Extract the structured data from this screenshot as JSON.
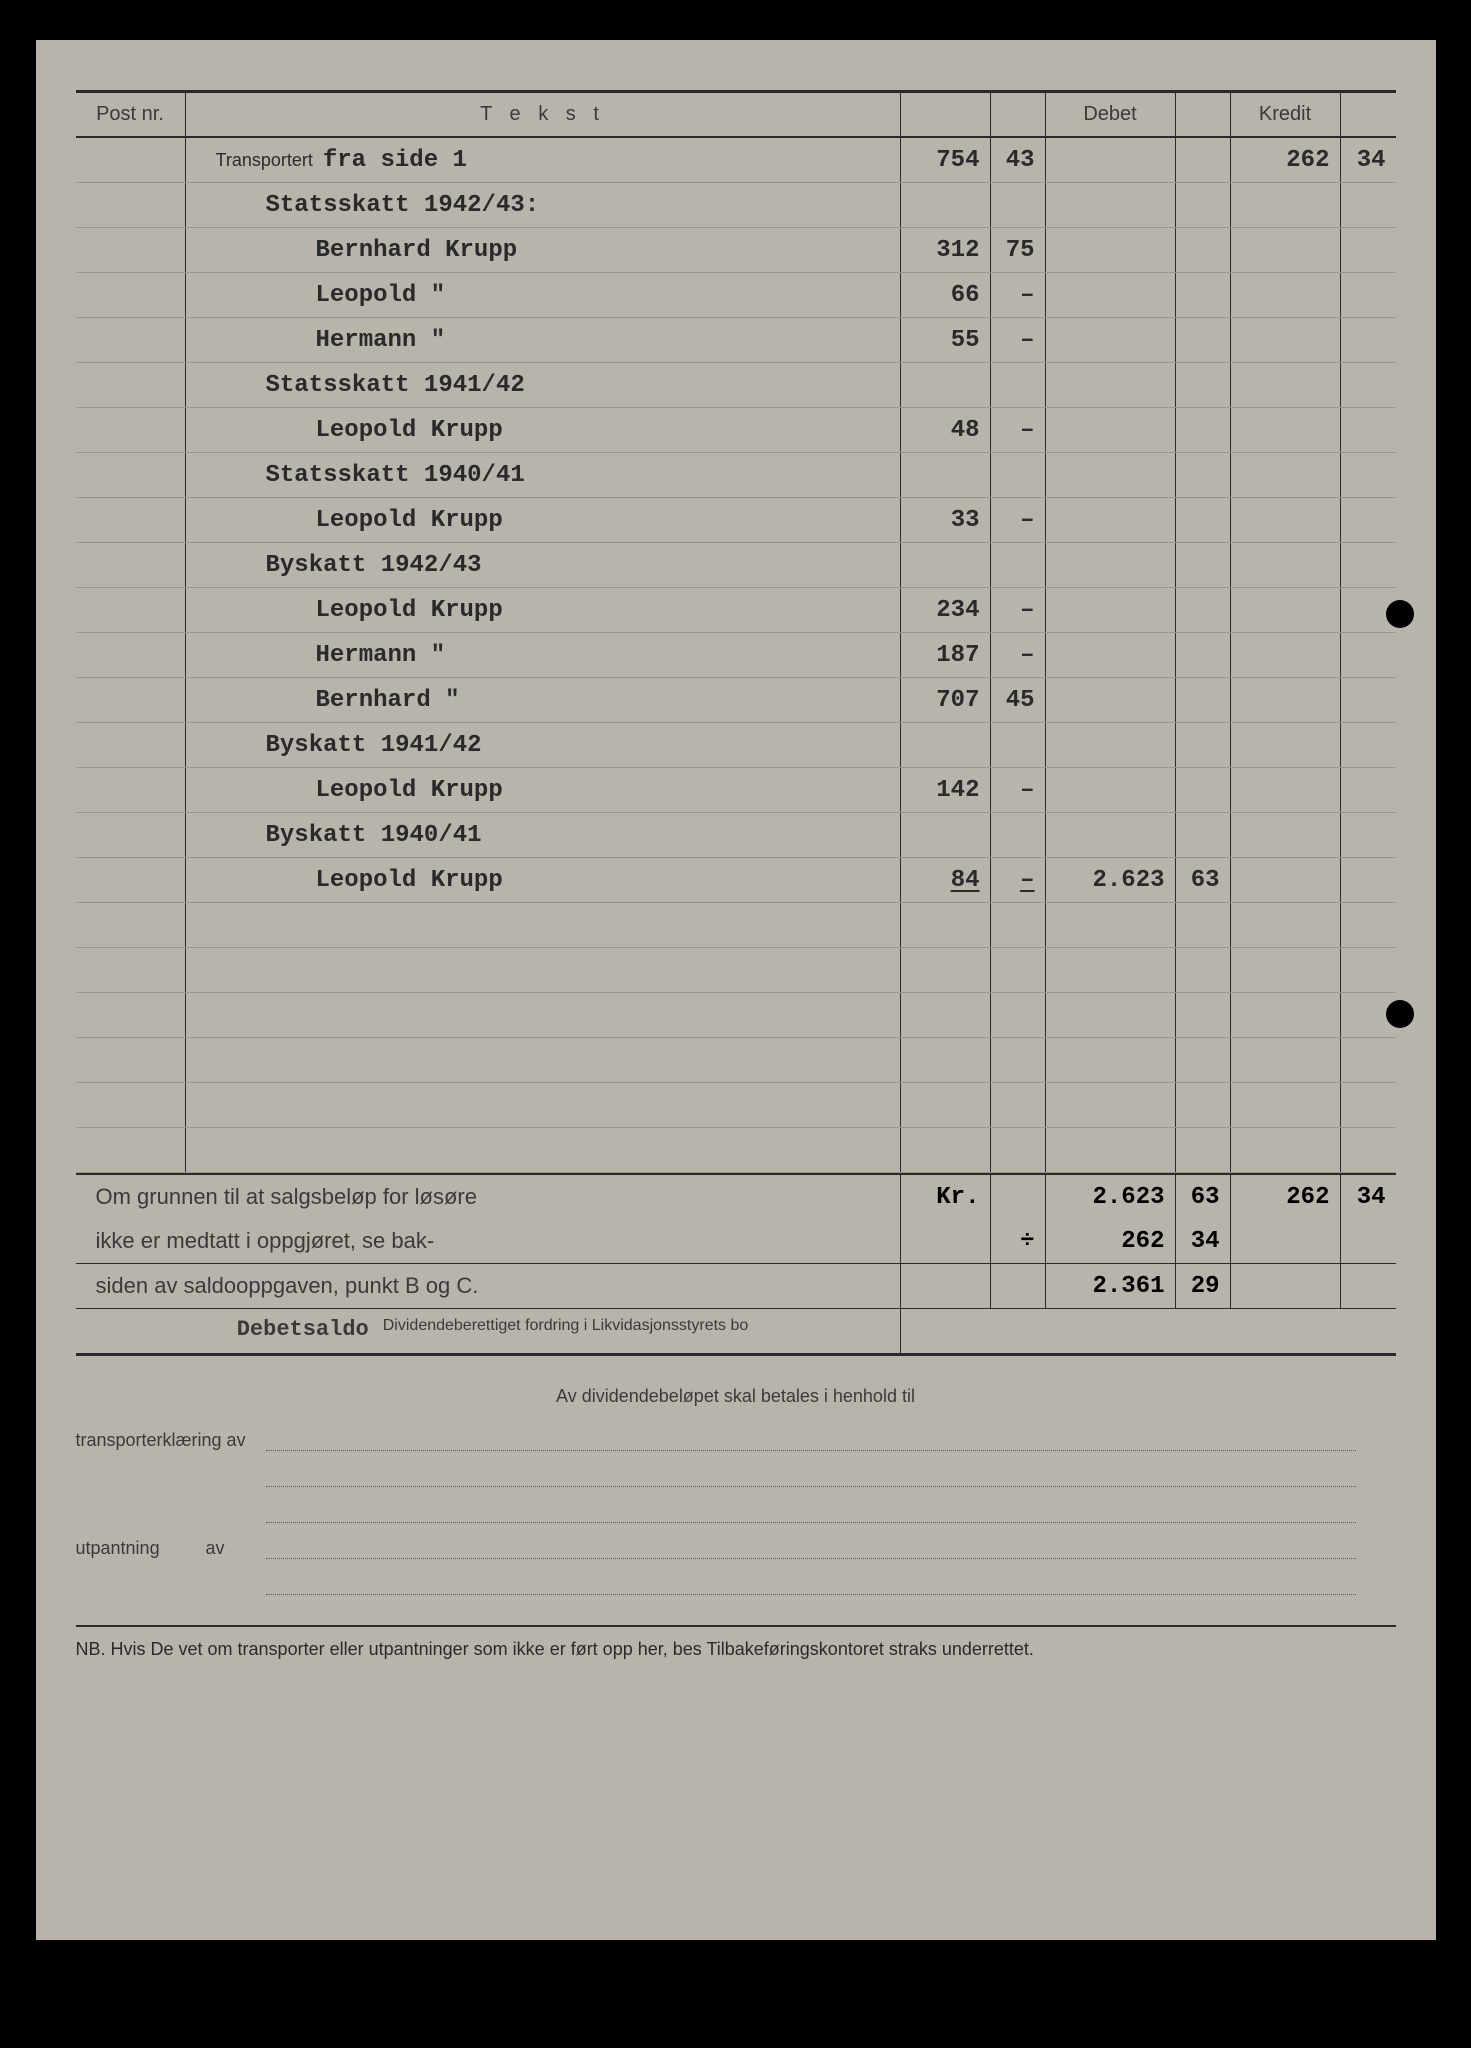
{
  "headers": {
    "post": "Post nr.",
    "tekst": "T e k s t",
    "debet": "Debet",
    "kredit": "Kredit"
  },
  "rows": [
    {
      "type": "transport",
      "label": "Transportert",
      "suffix": "fra side 1",
      "v1": "754",
      "v2": "43",
      "k1": "262",
      "k2": "34"
    },
    {
      "type": "heading",
      "text": "Statsskatt 1942/43:"
    },
    {
      "type": "entry",
      "text": "Bernhard Krupp",
      "v1": "312",
      "v2": "75"
    },
    {
      "type": "entry",
      "text": "Leopold    \"",
      "v1": "66",
      "v2": "–"
    },
    {
      "type": "entry",
      "text": "Hermann    \"",
      "v1": "55",
      "v2": "–"
    },
    {
      "type": "heading",
      "text": "Statsskatt 1941/42"
    },
    {
      "type": "entry",
      "text": "Leopold Krupp",
      "v1": "48",
      "v2": "–"
    },
    {
      "type": "heading",
      "text": "Statsskatt 1940/41"
    },
    {
      "type": "entry",
      "text": "Leopold Krupp",
      "v1": "33",
      "v2": "–"
    },
    {
      "type": "heading",
      "text": "Byskatt 1942/43"
    },
    {
      "type": "entry",
      "text": "Leopold Krupp",
      "v1": "234",
      "v2": "–"
    },
    {
      "type": "entry",
      "text": "Hermann   \"",
      "v1": "187",
      "v2": "–"
    },
    {
      "type": "entry",
      "text": "Bernhard  \"",
      "v1": "707",
      "v2": "45"
    },
    {
      "type": "heading",
      "text": "Byskatt 1941/42"
    },
    {
      "type": "entry",
      "text": "Leopold Krupp",
      "v1": "142",
      "v2": "–"
    },
    {
      "type": "heading",
      "text": "Byskatt 1940/41"
    },
    {
      "type": "entry",
      "text": "Leopold Krupp",
      "v1": "84",
      "v2": "–",
      "d1": "2.623",
      "d2": "63",
      "underline": true
    },
    {
      "type": "blank"
    },
    {
      "type": "blank"
    },
    {
      "type": "blank"
    },
    {
      "type": "blank"
    },
    {
      "type": "blank"
    },
    {
      "type": "blank"
    }
  ],
  "totals": {
    "note1": "Om grunnen til at salgsbeløp for løsøre",
    "note2": "ikke er medtatt i oppgjøret, se bak-",
    "note3": "siden av saldooppgaven, punkt B og C.",
    "saldo_label": "Debetsaldo",
    "saldo_text": "Dividendeberettiget fordring i Likvidasjonsstyrets bo",
    "kr": "Kr.",
    "plus": "÷",
    "r1": {
      "d1": "2.623",
      "d2": "63",
      "k1": "262",
      "k2": "34"
    },
    "r2": {
      "d1": "262",
      "d2": "34"
    },
    "r3": {
      "d1": "2.361",
      "d2": "29"
    }
  },
  "footer": {
    "center": "Av dividendebeløpet skal betales i henhold til",
    "transport": "transporterklæring av",
    "utpantning": "utpantning",
    "av": "av",
    "nb": "NB.  Hvis De vet om transporter eller utpantninger som ikke er ført opp her, bes Tilbakeføringskontoret straks underrettet."
  },
  "style": {
    "page_bg": "#b8b4ab",
    "text_color": "#2a2a2a",
    "line_color": "#2a2a2a"
  }
}
